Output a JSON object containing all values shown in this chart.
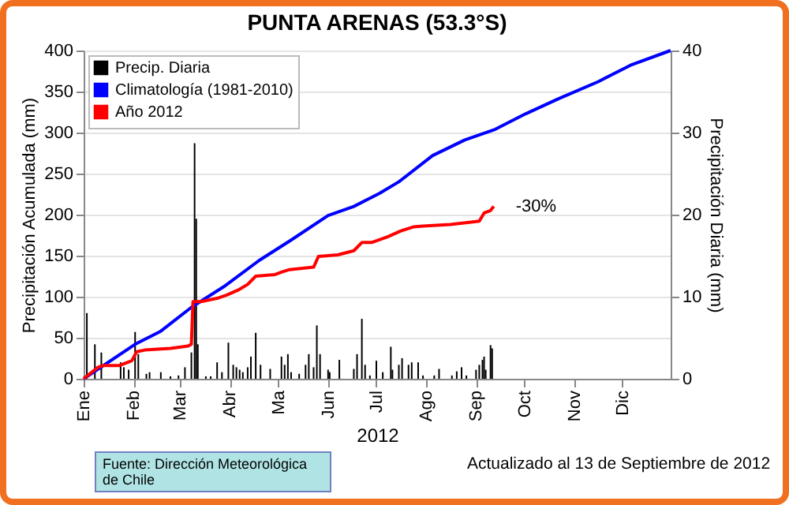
{
  "chart_data": {
    "type": "line",
    "title": "PUNTA ARENAS (53.3°S)",
    "xlabel": "2012",
    "ylabel": "Precipitación Acumulada (mm)",
    "y2label": "Precipitación Diaria (mm)",
    "xlim": [
      "2012-01-01",
      "2012-12-31"
    ],
    "xticks": [
      {
        "value": "2012-01-01",
        "label": "Ene"
      },
      {
        "value": "2012-02-01",
        "label": "Feb"
      },
      {
        "value": "2012-03-01",
        "label": "Mar"
      },
      {
        "value": "2012-04-01",
        "label": "Abr"
      },
      {
        "value": "2012-05-01",
        "label": "Ma"
      },
      {
        "value": "2012-06-01",
        "label": "Jun"
      },
      {
        "value": "2012-07-01",
        "label": "Jul"
      },
      {
        "value": "2012-08-01",
        "label": "Ago"
      },
      {
        "value": "2012-09-01",
        "label": "Sep"
      },
      {
        "value": "2012-10-01",
        "label": "Oct"
      },
      {
        "value": "2012-11-01",
        "label": "Nov"
      },
      {
        "value": "2012-12-01",
        "label": "Dic"
      }
    ],
    "ylim": [
      0,
      400
    ],
    "yticks": [
      0,
      50,
      100,
      150,
      200,
      250,
      300,
      350,
      400
    ],
    "y2lim": [
      0,
      40
    ],
    "y2ticks": [
      0,
      10,
      20,
      30,
      40
    ],
    "grid": "y",
    "legend": "top left",
    "series": [
      {
        "name": "Precip. Diaria",
        "type": "bar",
        "axis": "y2",
        "color": "#000000",
        "x": [
          "2012-01-03",
          "2012-01-08",
          "2012-01-12",
          "2012-01-24",
          "2012-01-26",
          "2012-01-29",
          "2012-02-02",
          "2012-02-04",
          "2012-02-09",
          "2012-02-11",
          "2012-02-18",
          "2012-02-24",
          "2012-02-29",
          "2012-03-04",
          "2012-03-08",
          "2012-03-10",
          "2012-03-11",
          "2012-03-12",
          "2012-03-17",
          "2012-03-20",
          "2012-03-24",
          "2012-03-27",
          "2012-03-31",
          "2012-04-03",
          "2012-04-05",
          "2012-04-07",
          "2012-04-09",
          "2012-04-12",
          "2012-04-14",
          "2012-04-17",
          "2012-04-20",
          "2012-04-26",
          "2012-05-03",
          "2012-05-05",
          "2012-05-07",
          "2012-05-09",
          "2012-05-14",
          "2012-05-18",
          "2012-05-20",
          "2012-05-23",
          "2012-05-25",
          "2012-05-27",
          "2012-06-01",
          "2012-06-02",
          "2012-06-08",
          "2012-06-17",
          "2012-06-19",
          "2012-06-22",
          "2012-06-24",
          "2012-06-27",
          "2012-07-01",
          "2012-07-05",
          "2012-07-10",
          "2012-07-11",
          "2012-07-15",
          "2012-07-17",
          "2012-07-21",
          "2012-07-23",
          "2012-07-27",
          "2012-07-30",
          "2012-08-06",
          "2012-08-09",
          "2012-08-17",
          "2012-08-20",
          "2012-08-23",
          "2012-08-26",
          "2012-09-01",
          "2012-09-03",
          "2012-09-05",
          "2012-09-06",
          "2012-09-07",
          "2012-09-10",
          "2012-09-11"
        ],
        "values": [
          8.0,
          4.2,
          3.2,
          2.0,
          1.4,
          1.1,
          5.7,
          3.0,
          0.6,
          0.8,
          0.8,
          0.3,
          0.4,
          1.4,
          3.2,
          28.7,
          19.5,
          4.2,
          0.3,
          0.3,
          2.0,
          0.8,
          4.4,
          1.7,
          1.4,
          1.1,
          0.8,
          1.4,
          2.7,
          5.6,
          1.7,
          1.2,
          2.7,
          1.7,
          3.0,
          0.8,
          0.6,
          1.7,
          3.0,
          1.4,
          6.5,
          3.0,
          1.1,
          0.8,
          2.3,
          1.2,
          3.0,
          7.3,
          1.7,
          0.4,
          2.2,
          0.8,
          3.9,
          1.1,
          1.7,
          2.5,
          1.7,
          2.0,
          2.0,
          0.4,
          0.4,
          1.2,
          0.4,
          0.9,
          1.4,
          0.4,
          1.1,
          1.7,
          2.3,
          2.7,
          1.1,
          4.1,
          3.7
        ]
      },
      {
        "name": "Climatología (1981-2010)",
        "color": "#0000ff",
        "x": [
          "2012-01-01",
          "2012-02-02",
          "2012-02-18",
          "2012-03-08",
          "2012-03-28",
          "2012-04-19",
          "2012-05-09",
          "2012-06-01",
          "2012-06-17",
          "2012-07-03",
          "2012-07-15",
          "2012-08-05",
          "2012-08-25",
          "2012-09-13",
          "2012-10-02",
          "2012-10-22",
          "2012-11-16",
          "2012-12-06",
          "2012-12-31"
        ],
        "values": [
          0,
          42,
          58,
          87,
          112,
          144,
          169,
          199,
          210,
          226,
          240,
          272,
          291,
          304,
          323,
          341,
          362,
          382,
          400
        ]
      },
      {
        "name": "Año 2012",
        "color": "#ff0000",
        "x": [
          "2012-01-01",
          "2012-01-10",
          "2012-01-13",
          "2012-01-23",
          "2012-01-31",
          "2012-02-03",
          "2012-02-08",
          "2012-02-24",
          "2012-03-06",
          "2012-03-08",
          "2012-03-09",
          "2012-03-14",
          "2012-03-24",
          "2012-03-30",
          "2012-04-06",
          "2012-04-12",
          "2012-04-17",
          "2012-04-29",
          "2012-05-03",
          "2012-05-08",
          "2012-05-23",
          "2012-05-26",
          "2012-06-07",
          "2012-06-17",
          "2012-06-22",
          "2012-06-28",
          "2012-07-08",
          "2012-07-16",
          "2012-07-24",
          "2012-07-30",
          "2012-08-16",
          "2012-08-30",
          "2012-09-03",
          "2012-09-06",
          "2012-09-10",
          "2012-09-12"
        ],
        "values": [
          0,
          14,
          16,
          16,
          22,
          33,
          35,
          37,
          40,
          42,
          94,
          94,
          98,
          102,
          108,
          115,
          125,
          127,
          130,
          133,
          136,
          149,
          151,
          156,
          166,
          166,
          173,
          180,
          185,
          186,
          188,
          191,
          192,
          202,
          205,
          210
        ]
      }
    ],
    "annotations": [
      {
        "text": "-30%",
        "x": "2012-09-12",
        "y": 210
      },
      "Fuente: Dirección Meteorológica de Chile",
      "Actualizado al 13 de Septiembre de 2012"
    ]
  }
}
